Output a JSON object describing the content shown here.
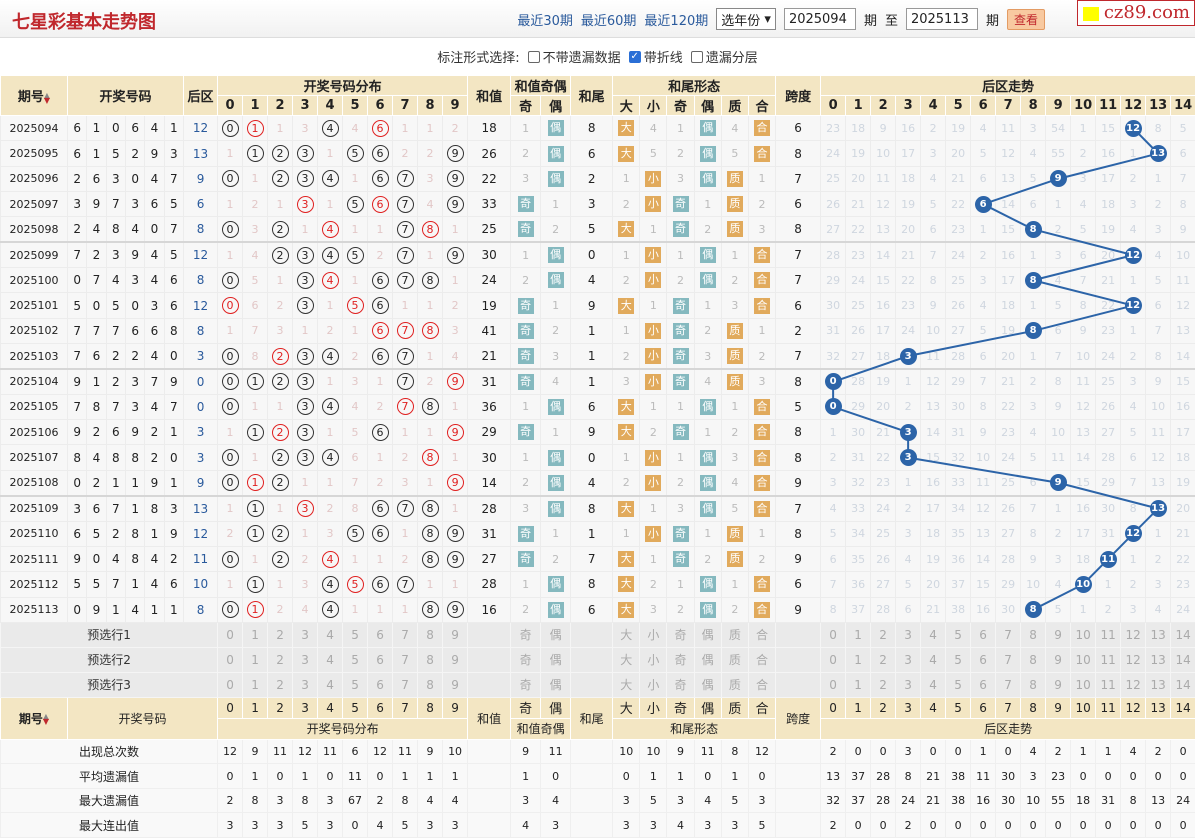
{
  "header": {
    "title": "七星彩基本走势图",
    "links": [
      "最近30期",
      "最近60期",
      "最近120期"
    ],
    "year_select": "选年份",
    "from": "2025094",
    "from_unit": "期",
    "to_label": "至",
    "to": "2025113",
    "to_unit": "期",
    "query_button": "查看",
    "watermark": "cz89.com"
  },
  "options": {
    "label": "标注形式选择:",
    "items": [
      {
        "label": "不带遗漏数据",
        "checked": false
      },
      {
        "label": "带折线",
        "checked": true
      },
      {
        "label": "遗漏分层",
        "checked": false
      }
    ]
  },
  "columns": {
    "period": "期号",
    "sort_icon": "sort-arrows",
    "numbers": "开奖号码",
    "back": "后区",
    "dist": "开奖号码分布",
    "digits": [
      "0",
      "1",
      "2",
      "3",
      "4",
      "5",
      "6",
      "7",
      "8",
      "9"
    ],
    "sum": "和值",
    "sum_oe": "和值奇偶",
    "oe": [
      "奇",
      "偶"
    ],
    "tail": "和尾",
    "tail_form": "和尾形态",
    "forms": [
      "大",
      "小",
      "奇",
      "偶",
      "质",
      "合"
    ],
    "span": "跨度",
    "back_trend": "后区走势",
    "back_digits": [
      "0",
      "1",
      "2",
      "3",
      "4",
      "5",
      "6",
      "7",
      "8",
      "9",
      "10",
      "11",
      "12",
      "13",
      "14"
    ]
  },
  "colors": {
    "header_bg": "#f3e6c3",
    "ball": "#2c64a8",
    "repeat": "#e02020",
    "odd_even_tag": "#85b9bf",
    "form_tag": "#e1aa5c"
  },
  "rows": [
    {
      "p": "2025094",
      "nums": [
        "6",
        "1",
        "0",
        "6",
        "4",
        "1"
      ],
      "back": 12,
      "dist": [
        "c0",
        "r1",
        "1",
        "3",
        "c4",
        "4",
        "r6",
        "1",
        "1",
        "2"
      ],
      "sum": "18",
      "oe": [
        "1",
        "偶"
      ],
      "tail": "8",
      "bs": [
        "大",
        "4"
      ],
      "toe": [
        "1",
        "偶"
      ],
      "pc": [
        "4",
        "合"
      ],
      "span": "6",
      "trend": [
        23,
        18,
        9,
        16,
        2,
        19,
        4,
        11,
        3,
        54,
        1,
        15,
        12,
        8,
        5
      ]
    },
    {
      "p": "2025095",
      "nums": [
        "6",
        "1",
        "5",
        "2",
        "9",
        "3"
      ],
      "back": 13,
      "dist": [
        "1",
        "c1",
        "c2",
        "c3",
        "1",
        "c5",
        "c6",
        "2",
        "2",
        "c9"
      ],
      "sum": "26",
      "oe": [
        "2",
        "偶"
      ],
      "tail": "6",
      "bs": [
        "大",
        "5"
      ],
      "toe": [
        "2",
        "偶"
      ],
      "pc": [
        "5",
        "合"
      ],
      "span": "8",
      "trend": [
        24,
        19,
        10,
        17,
        3,
        20,
        5,
        12,
        4,
        55,
        2,
        16,
        1,
        13,
        6
      ]
    },
    {
      "p": "2025096",
      "nums": [
        "2",
        "6",
        "3",
        "0",
        "4",
        "7"
      ],
      "back": 9,
      "dist": [
        "c0",
        "1",
        "c2",
        "c3",
        "c4",
        "1",
        "c6",
        "c7",
        "3",
        "c9"
      ],
      "sum": "22",
      "oe": [
        "3",
        "偶"
      ],
      "tail": "2",
      "bs": [
        "1",
        "小"
      ],
      "toe": [
        "3",
        "偶"
      ],
      "pc": [
        "质",
        "1"
      ],
      "span": "7",
      "trend": [
        25,
        20,
        11,
        18,
        4,
        21,
        6,
        13,
        5,
        9,
        3,
        17,
        2,
        1,
        7
      ]
    },
    {
      "p": "2025097",
      "nums": [
        "3",
        "9",
        "7",
        "3",
        "6",
        "5"
      ],
      "back": 6,
      "dist": [
        "1",
        "2",
        "1",
        "r3",
        "1",
        "c5",
        "r6",
        "c7",
        "4",
        "c9"
      ],
      "sum": "33",
      "oe": [
        "奇",
        "1"
      ],
      "tail": "3",
      "bs": [
        "2",
        "小"
      ],
      "toe": [
        "奇",
        "1"
      ],
      "pc": [
        "质",
        "2"
      ],
      "span": "6",
      "trend": [
        26,
        21,
        12,
        19,
        5,
        22,
        6,
        14,
        6,
        1,
        4,
        18,
        3,
        2,
        8
      ]
    },
    {
      "p": "2025098",
      "nums": [
        "2",
        "4",
        "8",
        "4",
        "0",
        "7"
      ],
      "back": 8,
      "dist": [
        "c0",
        "3",
        "c2",
        "1",
        "r4",
        "1",
        "1",
        "c7",
        "r8",
        "1"
      ],
      "sum": "25",
      "oe": [
        "奇",
        "2"
      ],
      "tail": "5",
      "bs": [
        "大",
        "1"
      ],
      "toe": [
        "奇",
        "2"
      ],
      "pc": [
        "质",
        "3"
      ],
      "span": "8",
      "trend": [
        27,
        22,
        13,
        20,
        6,
        23,
        1,
        15,
        8,
        2,
        5,
        19,
        4,
        3,
        9
      ]
    },
    {
      "p": "2025099",
      "nums": [
        "7",
        "2",
        "3",
        "9",
        "4",
        "5"
      ],
      "back": 12,
      "dist": [
        "1",
        "4",
        "c2",
        "c3",
        "c4",
        "c5",
        "2",
        "c7",
        "1",
        "c9"
      ],
      "sum": "30",
      "oe": [
        "1",
        "偶"
      ],
      "tail": "0",
      "bs": [
        "1",
        "小"
      ],
      "toe": [
        "1",
        "偶"
      ],
      "pc": [
        "1",
        "合"
      ],
      "span": "7",
      "trend": [
        28,
        23,
        14,
        21,
        7,
        24,
        2,
        16,
        1,
        3,
        6,
        20,
        12,
        4,
        10
      ]
    },
    {
      "p": "2025100",
      "nums": [
        "0",
        "7",
        "4",
        "3",
        "4",
        "6"
      ],
      "back": 8,
      "dist": [
        "c0",
        "5",
        "1",
        "c3",
        "r4",
        "1",
        "c6",
        "c7",
        "c8",
        "1"
      ],
      "sum": "24",
      "oe": [
        "2",
        "偶"
      ],
      "tail": "4",
      "bs": [
        "2",
        "小"
      ],
      "toe": [
        "2",
        "偶"
      ],
      "pc": [
        "2",
        "合"
      ],
      "span": "7",
      "trend": [
        29,
        24,
        15,
        22,
        8,
        25,
        3,
        17,
        8,
        4,
        7,
        21,
        1,
        5,
        11
      ]
    },
    {
      "p": "2025101",
      "nums": [
        "5",
        "0",
        "5",
        "0",
        "3",
        "6"
      ],
      "back": 12,
      "dist": [
        "r0",
        "6",
        "2",
        "c3",
        "1",
        "r5",
        "c6",
        "1",
        "1",
        "2"
      ],
      "sum": "19",
      "oe": [
        "奇",
        "1"
      ],
      "tail": "9",
      "bs": [
        "大",
        "1"
      ],
      "toe": [
        "奇",
        "1"
      ],
      "pc": [
        "3",
        "合"
      ],
      "span": "6",
      "trend": [
        30,
        25,
        16,
        23,
        9,
        26,
        4,
        18,
        1,
        5,
        8,
        22,
        12,
        6,
        12
      ]
    },
    {
      "p": "2025102",
      "nums": [
        "7",
        "7",
        "7",
        "6",
        "6",
        "8"
      ],
      "back": 8,
      "dist": [
        "1",
        "7",
        "3",
        "1",
        "2",
        "1",
        "r6",
        "r7",
        "r8",
        "3"
      ],
      "sum": "41",
      "oe": [
        "奇",
        "2"
      ],
      "tail": "1",
      "bs": [
        "1",
        "小"
      ],
      "toe": [
        "奇",
        "2"
      ],
      "pc": [
        "质",
        "1"
      ],
      "span": "2",
      "trend": [
        31,
        26,
        17,
        24,
        10,
        27,
        5,
        19,
        8,
        6,
        9,
        23,
        1,
        7,
        13
      ]
    },
    {
      "p": "2025103",
      "nums": [
        "7",
        "6",
        "2",
        "2",
        "4",
        "0"
      ],
      "back": 3,
      "dist": [
        "c0",
        "8",
        "r2",
        "c3",
        "c4",
        "2",
        "c6",
        "c7",
        "1",
        "4"
      ],
      "sum": "21",
      "oe": [
        "奇",
        "3"
      ],
      "tail": "1",
      "bs": [
        "2",
        "小"
      ],
      "toe": [
        "奇",
        "3"
      ],
      "pc": [
        "质",
        "2"
      ],
      "span": "7",
      "trend": [
        32,
        27,
        18,
        3,
        11,
        28,
        6,
        20,
        1,
        7,
        10,
        24,
        2,
        8,
        14
      ]
    },
    {
      "p": "2025104",
      "nums": [
        "9",
        "1",
        "2",
        "3",
        "7",
        "9"
      ],
      "back": 0,
      "dist": [
        "c0",
        "c1",
        "c2",
        "c3",
        "1",
        "3",
        "1",
        "c7",
        "2",
        "r9"
      ],
      "sum": "31",
      "oe": [
        "奇",
        "4"
      ],
      "tail": "1",
      "bs": [
        "3",
        "小"
      ],
      "toe": [
        "奇",
        "4"
      ],
      "pc": [
        "质",
        "3"
      ],
      "span": "8",
      "trend": [
        0,
        28,
        19,
        1,
        12,
        29,
        7,
        21,
        2,
        8,
        11,
        25,
        3,
        9,
        15
      ]
    },
    {
      "p": "2025105",
      "nums": [
        "7",
        "8",
        "7",
        "3",
        "4",
        "7"
      ],
      "back": 0,
      "dist": [
        "c0",
        "1",
        "1",
        "c3",
        "c4",
        "4",
        "2",
        "r7",
        "c8",
        "1"
      ],
      "sum": "36",
      "oe": [
        "1",
        "偶"
      ],
      "tail": "6",
      "bs": [
        "大",
        "1"
      ],
      "toe": [
        "1",
        "偶"
      ],
      "pc": [
        "1",
        "合"
      ],
      "span": "5",
      "trend": [
        0,
        29,
        20,
        2,
        13,
        30,
        8,
        22,
        3,
        9,
        12,
        26,
        4,
        10,
        16
      ]
    },
    {
      "p": "2025106",
      "nums": [
        "9",
        "2",
        "6",
        "9",
        "2",
        "1"
      ],
      "back": 3,
      "dist": [
        "1",
        "c1",
        "r2",
        "c3",
        "1",
        "5",
        "c6",
        "1",
        "1",
        "r9"
      ],
      "sum": "29",
      "oe": [
        "奇",
        "1"
      ],
      "tail": "9",
      "bs": [
        "大",
        "2"
      ],
      "toe": [
        "奇",
        "1"
      ],
      "pc": [
        "2",
        "合"
      ],
      "span": "8",
      "trend": [
        1,
        30,
        21,
        3,
        14,
        31,
        9,
        23,
        4,
        10,
        13,
        27,
        5,
        11,
        17
      ]
    },
    {
      "p": "2025107",
      "nums": [
        "8",
        "4",
        "8",
        "8",
        "2",
        "0"
      ],
      "back": 3,
      "dist": [
        "c0",
        "1",
        "c2",
        "c3",
        "c4",
        "6",
        "1",
        "2",
        "r8",
        "1"
      ],
      "sum": "30",
      "oe": [
        "1",
        "偶"
      ],
      "tail": "0",
      "bs": [
        "1",
        "小"
      ],
      "toe": [
        "1",
        "偶"
      ],
      "pc": [
        "3",
        "合"
      ],
      "span": "8",
      "trend": [
        2,
        31,
        22,
        3,
        15,
        32,
        10,
        24,
        5,
        11,
        14,
        28,
        6,
        12,
        18
      ]
    },
    {
      "p": "2025108",
      "nums": [
        "0",
        "2",
        "1",
        "1",
        "9",
        "1"
      ],
      "back": 9,
      "dist": [
        "c0",
        "r1",
        "c2",
        "1",
        "1",
        "7",
        "2",
        "3",
        "1",
        "r9"
      ],
      "sum": "14",
      "oe": [
        "2",
        "偶"
      ],
      "tail": "4",
      "bs": [
        "2",
        "小"
      ],
      "toe": [
        "2",
        "偶"
      ],
      "pc": [
        "4",
        "合"
      ],
      "span": "9",
      "trend": [
        3,
        32,
        23,
        1,
        16,
        33,
        11,
        25,
        6,
        9,
        15,
        29,
        7,
        13,
        19
      ]
    },
    {
      "p": "2025109",
      "nums": [
        "3",
        "6",
        "7",
        "1",
        "8",
        "3"
      ],
      "back": 13,
      "dist": [
        "1",
        "c1",
        "1",
        "r3",
        "2",
        "8",
        "c6",
        "c7",
        "c8",
        "1"
      ],
      "sum": "28",
      "oe": [
        "3",
        "偶"
      ],
      "tail": "8",
      "bs": [
        "大",
        "1"
      ],
      "toe": [
        "3",
        "偶"
      ],
      "pc": [
        "5",
        "合"
      ],
      "span": "7",
      "trend": [
        4,
        33,
        24,
        2,
        17,
        34,
        12,
        26,
        7,
        1,
        16,
        30,
        8,
        13,
        20
      ]
    },
    {
      "p": "2025110",
      "nums": [
        "6",
        "5",
        "2",
        "8",
        "1",
        "9"
      ],
      "back": 12,
      "dist": [
        "2",
        "c1",
        "c2",
        "1",
        "3",
        "c5",
        "c6",
        "1",
        "c8",
        "c9"
      ],
      "sum": "31",
      "oe": [
        "奇",
        "1"
      ],
      "tail": "1",
      "bs": [
        "1",
        "小"
      ],
      "toe": [
        "奇",
        "1"
      ],
      "pc": [
        "质",
        "1"
      ],
      "span": "8",
      "trend": [
        5,
        34,
        25,
        3,
        18,
        35,
        13,
        27,
        8,
        2,
        17,
        31,
        12,
        1,
        21
      ]
    },
    {
      "p": "2025111",
      "nums": [
        "9",
        "0",
        "4",
        "8",
        "4",
        "2"
      ],
      "back": 11,
      "dist": [
        "c0",
        "1",
        "c2",
        "2",
        "r4",
        "1",
        "1",
        "2",
        "c8",
        "c9"
      ],
      "sum": "27",
      "oe": [
        "奇",
        "2"
      ],
      "tail": "7",
      "bs": [
        "大",
        "1"
      ],
      "toe": [
        "奇",
        "2"
      ],
      "pc": [
        "质",
        "2"
      ],
      "span": "9",
      "trend": [
        6,
        35,
        26,
        4,
        19,
        36,
        14,
        28,
        9,
        3,
        18,
        11,
        1,
        2,
        22
      ]
    },
    {
      "p": "2025112",
      "nums": [
        "5",
        "5",
        "7",
        "1",
        "4",
        "6"
      ],
      "back": 10,
      "dist": [
        "1",
        "c1",
        "1",
        "3",
        "c4",
        "r5",
        "c6",
        "c7",
        "1",
        "1"
      ],
      "sum": "28",
      "oe": [
        "1",
        "偶"
      ],
      "tail": "8",
      "bs": [
        "大",
        "2"
      ],
      "toe": [
        "1",
        "偶"
      ],
      "pc": [
        "1",
        "合"
      ],
      "span": "6",
      "trend": [
        7,
        36,
        27,
        5,
        20,
        37,
        15,
        29,
        10,
        4,
        10,
        1,
        2,
        3,
        23
      ]
    },
    {
      "p": "2025113",
      "nums": [
        "0",
        "9",
        "1",
        "4",
        "1",
        "1"
      ],
      "back": 8,
      "dist": [
        "c0",
        "r1",
        "2",
        "4",
        "c4",
        "1",
        "1",
        "1",
        "c8",
        "c9"
      ],
      "sum": "16",
      "oe": [
        "2",
        "偶"
      ],
      "tail": "6",
      "bs": [
        "大",
        "3"
      ],
      "toe": [
        "2",
        "偶"
      ],
      "pc": [
        "2",
        "合"
      ],
      "span": "9",
      "trend": [
        8,
        37,
        28,
        6,
        21,
        38,
        16,
        30,
        8,
        5,
        1,
        2,
        3,
        4,
        24
      ]
    }
  ],
  "preselect": [
    "预选行1",
    "预选行2",
    "预选行3"
  ],
  "stats": [
    {
      "label": "出现总次数",
      "dist": [
        "12",
        "9",
        "11",
        "12",
        "11",
        "6",
        "12",
        "11",
        "9",
        "10"
      ],
      "oe": [
        "9",
        "11"
      ],
      "forms": [
        "10",
        "10",
        "9",
        "11",
        "8",
        "12"
      ],
      "back": [
        "2",
        "0",
        "0",
        "3",
        "0",
        "0",
        "1",
        "0",
        "4",
        "2",
        "1",
        "1",
        "4",
        "2",
        "0"
      ]
    },
    {
      "label": "平均遗漏值",
      "dist": [
        "0",
        "1",
        "0",
        "1",
        "0",
        "11",
        "0",
        "1",
        "1",
        "1"
      ],
      "oe": [
        "1",
        "0"
      ],
      "forms": [
        "0",
        "1",
        "1",
        "0",
        "1",
        "0"
      ],
      "back": [
        "13",
        "37",
        "28",
        "8",
        "21",
        "38",
        "11",
        "30",
        "3",
        "23",
        "0",
        "0",
        "0",
        "0",
        "0"
      ]
    },
    {
      "label": "最大遗漏值",
      "dist": [
        "2",
        "8",
        "3",
        "8",
        "3",
        "67",
        "2",
        "8",
        "4",
        "4"
      ],
      "oe": [
        "3",
        "4"
      ],
      "forms": [
        "3",
        "5",
        "3",
        "4",
        "5",
        "3"
      ],
      "back": [
        "32",
        "37",
        "28",
        "24",
        "21",
        "38",
        "16",
        "30",
        "10",
        "55",
        "18",
        "31",
        "8",
        "13",
        "24"
      ]
    },
    {
      "label": "最大连出值",
      "dist": [
        "3",
        "3",
        "3",
        "5",
        "3",
        "0",
        "4",
        "5",
        "3",
        "3"
      ],
      "oe": [
        "4",
        "3"
      ],
      "forms": [
        "3",
        "3",
        "4",
        "3",
        "3",
        "5"
      ],
      "back": [
        "2",
        "0",
        "0",
        "2",
        "0",
        "0",
        "0",
        "0",
        "0",
        "0",
        "0",
        "0",
        "0",
        "0",
        "0"
      ]
    }
  ]
}
